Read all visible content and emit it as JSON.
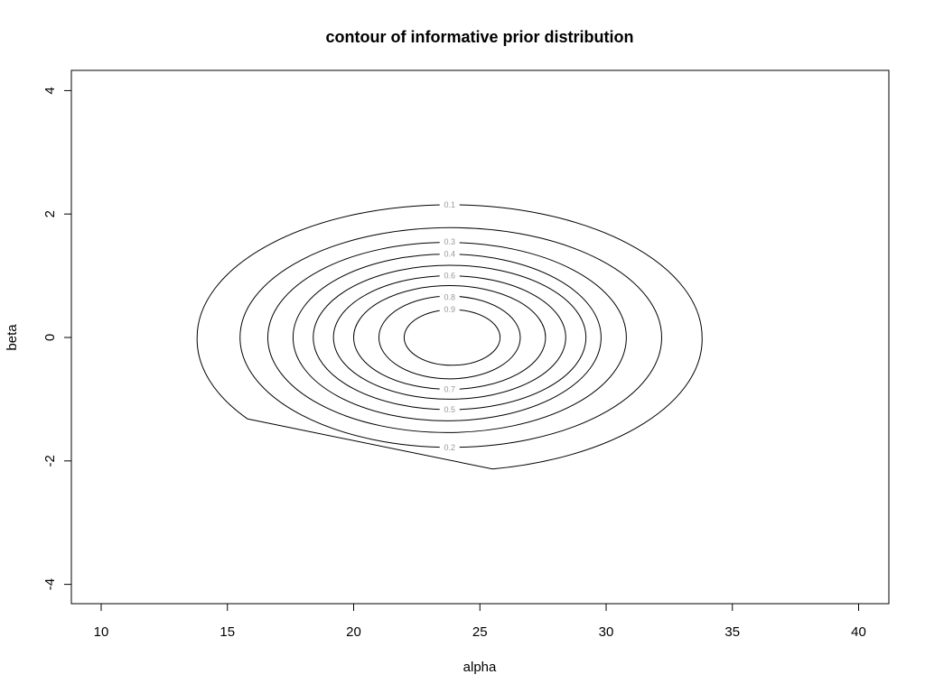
{
  "chart_data": {
    "type": "contour",
    "title": "contour of informative prior distribution",
    "xlabel": "alpha",
    "ylabel": "beta",
    "xlim": [
      9,
      41.5
    ],
    "ylim": [
      -4.3,
      4.3
    ],
    "x_ticks": [
      10,
      15,
      20,
      25,
      30,
      35,
      40
    ],
    "y_ticks": [
      -4,
      -2,
      0,
      2,
      4
    ],
    "grid": false,
    "line_color": "#000000",
    "label_color": "#999999",
    "center": {
      "alpha": 23.8,
      "beta": 0
    },
    "levels": [
      {
        "level": "0.1",
        "x_min": 13.8,
        "x_max": 33.8,
        "y_max": 2.15,
        "y_min": -2.13,
        "clipped": true
      },
      {
        "level": "0.2",
        "x_min": 15.5,
        "x_max": 32.2,
        "y_max": 1.78,
        "y_min": -1.78
      },
      {
        "level": "0.3",
        "x_min": 16.6,
        "x_max": 30.8,
        "y_max": 1.54,
        "y_min": -1.54
      },
      {
        "level": "0.4",
        "x_min": 17.6,
        "x_max": 29.8,
        "y_max": 1.35,
        "y_min": -1.35
      },
      {
        "level": "0.5",
        "x_min": 18.4,
        "x_max": 29.2,
        "y_max": 1.17,
        "y_min": -1.17
      },
      {
        "level": "0.6",
        "x_min": 19.2,
        "x_max": 28.4,
        "y_max": 1.0,
        "y_min": -1.0
      },
      {
        "level": "0.7",
        "x_min": 20.0,
        "x_max": 27.6,
        "y_max": 0.84,
        "y_min": -0.84
      },
      {
        "level": "0.8",
        "x_min": 21.0,
        "x_max": 26.6,
        "y_max": 0.67,
        "y_min": -0.67
      },
      {
        "level": "0.9",
        "x_min": 22.0,
        "x_max": 25.8,
        "y_max": 0.45,
        "y_min": -0.45
      }
    ],
    "label_positions": [
      {
        "level": "0.1",
        "alpha": 23.8,
        "beta": 2.15
      },
      {
        "level": "0.2",
        "alpha": 23.8,
        "beta": -1.78
      },
      {
        "level": "0.3",
        "alpha": 23.8,
        "beta": 1.55
      },
      {
        "level": "0.4",
        "alpha": 23.8,
        "beta": 1.35
      },
      {
        "level": "0.5",
        "alpha": 23.8,
        "beta": -1.17
      },
      {
        "level": "0.6",
        "alpha": 23.8,
        "beta": 1.0
      },
      {
        "level": "0.7",
        "alpha": 23.8,
        "beta": -0.84
      },
      {
        "level": "0.8",
        "alpha": 23.8,
        "beta": 0.65
      },
      {
        "level": "0.9",
        "alpha": 23.8,
        "beta": 0.45
      }
    ],
    "clip_segment": {
      "start": {
        "alpha": 15.8,
        "beta": -1.32
      },
      "end": {
        "alpha": 25.5,
        "beta": -2.13
      }
    }
  }
}
